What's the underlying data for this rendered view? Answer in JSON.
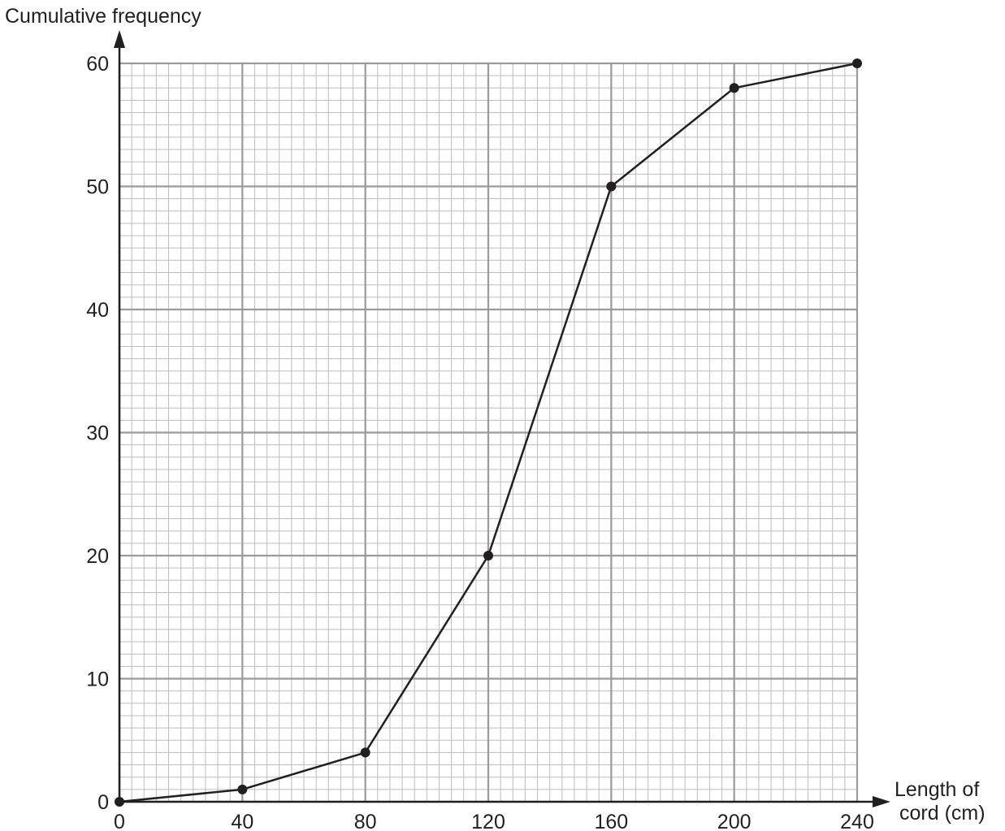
{
  "chart_data": {
    "type": "line",
    "title": "",
    "ylabel": "Cumulative frequency",
    "xlabel_lines": [
      "Length of",
      "cord (cm)"
    ],
    "x_ticks": [
      0,
      40,
      80,
      120,
      160,
      200,
      240
    ],
    "y_ticks": [
      0,
      10,
      20,
      30,
      40,
      50,
      60
    ],
    "xlim": [
      0,
      240
    ],
    "ylim": [
      0,
      60
    ],
    "grid": true,
    "grid_minor_x_step": 4,
    "grid_minor_y_step": 1,
    "series": [
      {
        "x": [
          0,
          40,
          80,
          120,
          160,
          200,
          240
        ],
        "y": [
          0,
          1,
          4,
          20,
          50,
          58,
          60
        ]
      }
    ],
    "colors": {
      "line": "#231f20",
      "marker": "#231f20",
      "grid_minor": "#bdbdbd",
      "grid_major": "#9a9a9a",
      "axis": "#231f20"
    }
  }
}
